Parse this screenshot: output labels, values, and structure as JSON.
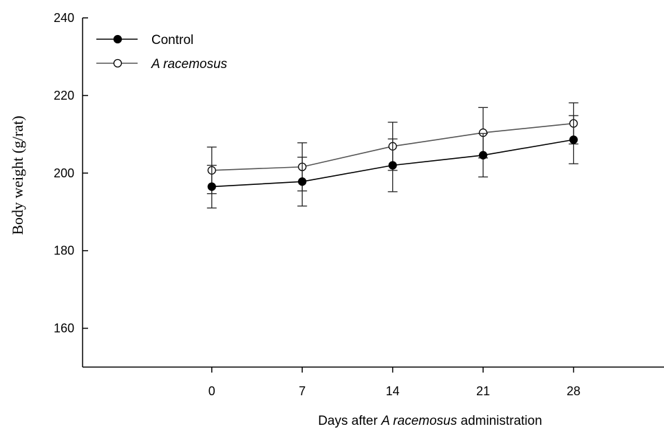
{
  "chart_data": {
    "type": "line",
    "x": [
      0,
      7,
      14,
      21,
      28
    ],
    "x_tick_labels": [
      "0",
      "7",
      "14",
      "21",
      "28"
    ],
    "xlim": [
      -10,
      35
    ],
    "ylim": [
      150,
      240
    ],
    "y_ticks": [
      160,
      180,
      200,
      220,
      240
    ],
    "y_tick_labels": [
      "160",
      "180",
      "200",
      "220",
      "240"
    ],
    "ylabel": "Body weight (g/rat)",
    "xlabel_parts": [
      "Days after ",
      "A racemosus",
      " administration"
    ],
    "legend_position": "top-left",
    "grid": false,
    "series": [
      {
        "name": "Control",
        "marker": "filled-circle",
        "color": "#000000",
        "values": [
          196.5,
          197.8,
          202.0,
          204.6,
          208.6
        ],
        "error": [
          5.5,
          6.3,
          6.8,
          5.6,
          6.2
        ]
      },
      {
        "name": "A racemosus",
        "marker": "open-circle",
        "color": "#555555",
        "values": [
          200.7,
          201.6,
          206.9,
          210.4,
          212.8
        ],
        "error": [
          6.0,
          6.2,
          6.2,
          6.5,
          5.3
        ]
      }
    ]
  }
}
